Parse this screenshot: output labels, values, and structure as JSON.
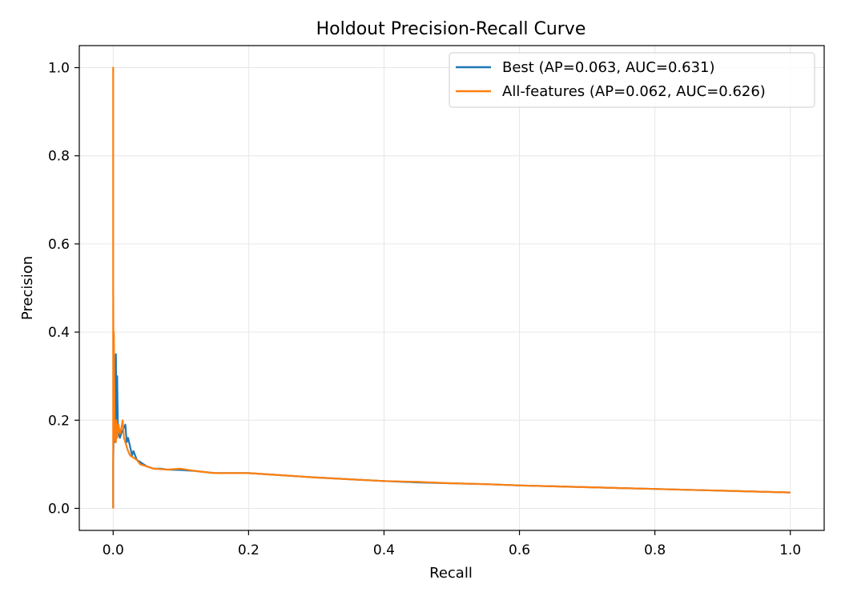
{
  "chart_data": {
    "type": "line",
    "title": "Holdout Precision-Recall Curve",
    "xlabel": "Recall",
    "ylabel": "Precision",
    "xlim": [
      -0.05,
      1.05
    ],
    "ylim": [
      -0.05,
      1.05
    ],
    "xticks": [
      0.0,
      0.2,
      0.4,
      0.6,
      0.8,
      1.0
    ],
    "xtick_labels": [
      "0.0",
      "0.2",
      "0.4",
      "0.6",
      "0.8",
      "1.0"
    ],
    "yticks": [
      0.0,
      0.2,
      0.4,
      0.6,
      0.8,
      1.0
    ],
    "ytick_labels": [
      "0.0",
      "0.2",
      "0.4",
      "0.6",
      "0.8",
      "1.0"
    ],
    "grid": true,
    "legend_position": "top-right",
    "series": [
      {
        "name": "Best (AP=0.063, AUC=0.631)",
        "color": "#1f77b4",
        "x": [
          0.0,
          0.0,
          0.001,
          0.002,
          0.003,
          0.004,
          0.005,
          0.006,
          0.007,
          0.008,
          0.01,
          0.012,
          0.015,
          0.018,
          0.02,
          0.022,
          0.025,
          0.028,
          0.03,
          0.035,
          0.04,
          0.045,
          0.05,
          0.06,
          0.07,
          0.08,
          0.1,
          0.12,
          0.15,
          0.18,
          0.2,
          0.25,
          0.3,
          0.35,
          0.4,
          0.45,
          0.5,
          0.55,
          0.6,
          0.65,
          0.7,
          0.75,
          0.8,
          0.85,
          0.9,
          0.95,
          1.0
        ],
        "y": [
          0.0,
          0.1,
          0.2,
          0.15,
          0.25,
          0.35,
          0.16,
          0.3,
          0.18,
          0.17,
          0.16,
          0.17,
          0.18,
          0.19,
          0.15,
          0.16,
          0.14,
          0.12,
          0.13,
          0.11,
          0.105,
          0.1,
          0.095,
          0.09,
          0.09,
          0.088,
          0.087,
          0.085,
          0.08,
          0.08,
          0.08,
          0.075,
          0.07,
          0.066,
          0.062,
          0.059,
          0.057,
          0.055,
          0.052,
          0.05,
          0.048,
          0.046,
          0.044,
          0.042,
          0.04,
          0.038,
          0.036
        ]
      },
      {
        "name": "All-features (AP=0.062, AUC=0.626)",
        "color": "#ff7f0e",
        "x": [
          0.0,
          0.0,
          0.0,
          0.001,
          0.001,
          0.002,
          0.003,
          0.004,
          0.005,
          0.006,
          0.008,
          0.01,
          0.012,
          0.014,
          0.016,
          0.018,
          0.02,
          0.022,
          0.025,
          0.03,
          0.035,
          0.04,
          0.05,
          0.06,
          0.08,
          0.1,
          0.12,
          0.15,
          0.2,
          0.25,
          0.3,
          0.35,
          0.4,
          0.45,
          0.5,
          0.55,
          0.6,
          0.65,
          0.7,
          0.75,
          0.8,
          0.85,
          0.9,
          0.95,
          1.0
        ],
        "y": [
          0.0,
          1.0,
          0.5,
          0.15,
          0.4,
          0.2,
          0.18,
          0.15,
          0.2,
          0.16,
          0.19,
          0.17,
          0.18,
          0.2,
          0.16,
          0.15,
          0.14,
          0.13,
          0.12,
          0.115,
          0.11,
          0.1,
          0.095,
          0.09,
          0.088,
          0.09,
          0.085,
          0.08,
          0.08,
          0.075,
          0.07,
          0.066,
          0.062,
          0.06,
          0.057,
          0.055,
          0.052,
          0.05,
          0.048,
          0.046,
          0.044,
          0.042,
          0.04,
          0.038,
          0.036
        ]
      }
    ]
  }
}
